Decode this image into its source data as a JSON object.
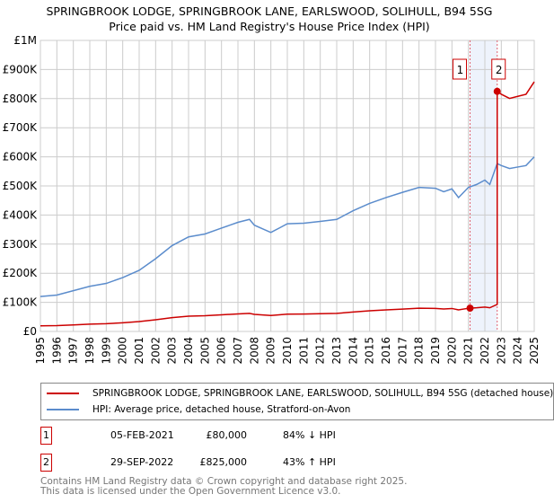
{
  "chart_data": {
    "type": "line",
    "title": "SPRINGBROOK LODGE, SPRINGBROOK LANE, EARLSWOOD, SOLIHULL, B94 5SG",
    "subtitle": "Price paid vs. HM Land Registry's House Price Index (HPI)",
    "xlim": [
      1995,
      2025
    ],
    "ylim": [
      0,
      1000000
    ],
    "x_ticks": [
      "1995",
      "1996",
      "1997",
      "1998",
      "1999",
      "2000",
      "2001",
      "2002",
      "2003",
      "2004",
      "2005",
      "2006",
      "2007",
      "2008",
      "2009",
      "2010",
      "2011",
      "2012",
      "2013",
      "2014",
      "2015",
      "2016",
      "2017",
      "2018",
      "2019",
      "2020",
      "2021",
      "2022",
      "2023",
      "2024",
      "2025"
    ],
    "y_ticks": [
      {
        "v": 0,
        "label": "£0"
      },
      {
        "v": 100000,
        "label": "£100K"
      },
      {
        "v": 200000,
        "label": "£200K"
      },
      {
        "v": 300000,
        "label": "£300K"
      },
      {
        "v": 400000,
        "label": "£400K"
      },
      {
        "v": 500000,
        "label": "£500K"
      },
      {
        "v": 600000,
        "label": "£600K"
      },
      {
        "v": 700000,
        "label": "£700K"
      },
      {
        "v": 800000,
        "label": "£800K"
      },
      {
        "v": 900000,
        "label": "£900K"
      },
      {
        "v": 1000000,
        "label": "£1M"
      }
    ],
    "hpi": {
      "name": "HPI: Average price, detached house, Stratford-on-Avon",
      "color": "#5b8ccc",
      "x": [
        1995,
        1996,
        1997,
        1998,
        1999,
        2000,
        2001,
        2002,
        2003,
        2004,
        2005,
        2006,
        2007,
        2007.7,
        2008,
        2009,
        2009.5,
        2010,
        2011,
        2012,
        2013,
        2014,
        2015,
        2016,
        2017,
        2018,
        2019,
        2019.5,
        2020,
        2020.4,
        2021,
        2021.5,
        2022,
        2022.3,
        2022.75,
        2023,
        2023.5,
        2024,
        2024.5,
        2025
      ],
      "y": [
        120000,
        125000,
        140000,
        155000,
        165000,
        185000,
        210000,
        250000,
        295000,
        325000,
        335000,
        355000,
        375000,
        385000,
        365000,
        340000,
        355000,
        370000,
        372000,
        378000,
        385000,
        415000,
        440000,
        460000,
        478000,
        495000,
        492000,
        480000,
        490000,
        460000,
        495000,
        505000,
        520000,
        505000,
        577000,
        570000,
        560000,
        565000,
        570000,
        600000
      ]
    },
    "property": {
      "name": "SPRINGBROOK LODGE, SPRINGBROOK LANE, EARLSWOOD, SOLIHULL, B94 5SG (detached house)",
      "color": "#cc0000"
    },
    "sales": [
      {
        "id": "1",
        "x": 2021.1,
        "date": "05-FEB-2021",
        "price": 80000,
        "price_label": "£80,000",
        "hpi_diff": "84% ↓ HPI"
      },
      {
        "id": "2",
        "x": 2022.75,
        "date": "29-SEP-2022",
        "price": 825000,
        "price_label": "£825,000",
        "hpi_diff": "43% ↑ HPI"
      }
    ]
  },
  "legend": {
    "property": "SPRINGBROOK LODGE, SPRINGBROOK LANE, EARLSWOOD, SOLIHULL, B94 5SG (detached house)",
    "hpi": "HPI: Average price, detached house, Stratford-on-Avon"
  },
  "footer": {
    "line1": "Contains HM Land Registry data © Crown copyright and database right 2025.",
    "line2": "This data is licensed under the Open Government Licence v3.0."
  }
}
